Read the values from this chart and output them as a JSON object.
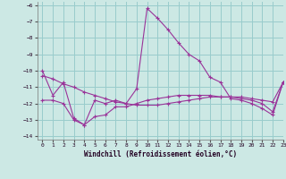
{
  "xlabel": "Windchill (Refroidissement éolien,°C)",
  "xlim": [
    -0.5,
    23
  ],
  "ylim": [
    -14.2,
    -5.8
  ],
  "xticks": [
    0,
    1,
    2,
    3,
    4,
    5,
    6,
    7,
    8,
    9,
    10,
    11,
    12,
    13,
    14,
    15,
    16,
    17,
    18,
    19,
    20,
    21,
    22,
    23
  ],
  "yticks": [
    -14,
    -13,
    -12,
    -11,
    -10,
    -9,
    -8,
    -7,
    -6
  ],
  "bg_color": "#cce8e4",
  "grid_color": "#99cccc",
  "line_color": "#993399",
  "line1_x": [
    0,
    1,
    2,
    3,
    4,
    5,
    6,
    7,
    8,
    9,
    10,
    11,
    12,
    13,
    14,
    15,
    16,
    17,
    18,
    19,
    20,
    21,
    22,
    23
  ],
  "line1_y": [
    -10.0,
    -11.5,
    -10.7,
    -12.9,
    -13.3,
    -11.8,
    -12.0,
    -11.8,
    -12.0,
    -11.1,
    -6.2,
    -6.8,
    -7.5,
    -8.3,
    -9.0,
    -9.4,
    -10.4,
    -10.7,
    -11.7,
    -11.8,
    -12.0,
    -12.3,
    -12.7,
    -10.7
  ],
  "line2_x": [
    0,
    1,
    2,
    3,
    4,
    5,
    6,
    7,
    8,
    9,
    10,
    11,
    12,
    13,
    14,
    15,
    16,
    17,
    18,
    19,
    20,
    21,
    22,
    23
  ],
  "line2_y": [
    -10.3,
    -10.5,
    -10.8,
    -11.0,
    -11.3,
    -11.5,
    -11.7,
    -11.9,
    -12.0,
    -12.1,
    -12.1,
    -12.1,
    -12.0,
    -11.9,
    -11.8,
    -11.7,
    -11.6,
    -11.6,
    -11.6,
    -11.6,
    -11.7,
    -11.8,
    -11.9,
    -10.7
  ],
  "line3_x": [
    0,
    1,
    2,
    3,
    4,
    5,
    6,
    7,
    8,
    9,
    10,
    11,
    12,
    13,
    14,
    15,
    16,
    17,
    18,
    19,
    20,
    21,
    22,
    23
  ],
  "line3_y": [
    -11.8,
    -11.8,
    -12.0,
    -13.0,
    -13.3,
    -12.8,
    -12.7,
    -12.2,
    -12.2,
    -12.0,
    -11.8,
    -11.7,
    -11.6,
    -11.5,
    -11.5,
    -11.5,
    -11.5,
    -11.6,
    -11.6,
    -11.7,
    -11.8,
    -12.0,
    -12.5,
    -10.7
  ]
}
